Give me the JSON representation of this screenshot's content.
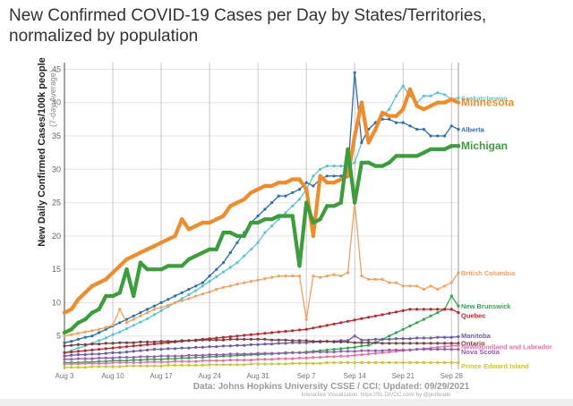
{
  "page_title_lines": [
    "New Confirmed COVID-19 Cases per Day by States/Territories,",
    "normalized by population"
  ],
  "chart_data": {
    "type": "line",
    "title": "New Confirmed COVID-19 Cases per Day by States/Territories, normalized by population",
    "ylabel": "New Daily Confirmed Cases/100k people",
    "ylabel_sub": "(7-day Average)",
    "xlabel": "",
    "ylim": [
      0,
      46
    ],
    "yticks": [
      5,
      10,
      15,
      20,
      25,
      30,
      35,
      40,
      45
    ],
    "x_dates": [
      "Aug 3",
      "Aug 4",
      "Aug 5",
      "Aug 6",
      "Aug 7",
      "Aug 8",
      "Aug 9",
      "Aug 10",
      "Aug 11",
      "Aug 12",
      "Aug 13",
      "Aug 14",
      "Aug 15",
      "Aug 16",
      "Aug 17",
      "Aug 18",
      "Aug 19",
      "Aug 20",
      "Aug 21",
      "Aug 22",
      "Aug 23",
      "Aug 24",
      "Aug 25",
      "Aug 26",
      "Aug 27",
      "Aug 28",
      "Aug 29",
      "Aug 30",
      "Aug 31",
      "Sep 1",
      "Sep 2",
      "Sep 3",
      "Sep 4",
      "Sep 5",
      "Sep 6",
      "Sep 7",
      "Sep 8",
      "Sep 9",
      "Sep 10",
      "Sep 11",
      "Sep 12",
      "Sep 13",
      "Sep 14",
      "Sep 15",
      "Sep 16",
      "Sep 17",
      "Sep 18",
      "Sep 19",
      "Sep 20",
      "Sep 21",
      "Sep 22",
      "Sep 23",
      "Sep 24",
      "Sep 25",
      "Sep 26",
      "Sep 27",
      "Sep 28",
      "Sep 29"
    ],
    "x_tick_labels": [
      "Aug 3",
      "Aug 10",
      "Aug 17",
      "Aug 24",
      "Aug 31",
      "Sep 7",
      "Sep 14",
      "Sep 21",
      "Sep 28"
    ],
    "grid": true,
    "legend_placement": "right end labels",
    "series": [
      {
        "name": "Saskatchewan",
        "color": "#5bc3d6",
        "width": 1.3,
        "dash": "",
        "values": [
          2.5,
          2.8,
          3.2,
          3.5,
          3.9,
          4.3,
          4.7,
          5.2,
          5.6,
          6.1,
          6.6,
          7.1,
          7.6,
          8.2,
          8.8,
          9.4,
          10.0,
          10.6,
          11.2,
          11.8,
          12.5,
          13.2,
          13.9,
          14.6,
          15.3,
          16.0,
          17.0,
          18.0,
          19.0,
          20.5,
          21.5,
          22.5,
          23.5,
          24.5,
          25.5,
          27.0,
          29.0,
          30.0,
          30.5,
          30.5,
          30.5,
          30.5,
          31.0,
          34.0,
          36.0,
          37.0,
          38.0,
          39.0,
          41.0,
          42.5,
          41.0,
          40.0,
          41.0,
          41.0,
          41.5,
          41.2,
          40.5,
          40.7
        ]
      },
      {
        "name": "Minnesota",
        "color": "#f28c28",
        "width": 4.2,
        "dash": "",
        "values": [
          8.5,
          9.0,
          10.5,
          11.5,
          12.5,
          13.0,
          13.5,
          14.5,
          15.5,
          16.5,
          17.0,
          17.5,
          18.0,
          18.5,
          19.0,
          19.5,
          20.0,
          22.5,
          21.0,
          21.5,
          22.0,
          22.0,
          22.5,
          23.0,
          24.5,
          25.0,
          25.5,
          26.5,
          27.0,
          27.5,
          27.5,
          28.0,
          28.0,
          28.5,
          28.5,
          27.0,
          20.0,
          29.0,
          28.0,
          28.0,
          28.5,
          29.0,
          35.0,
          40.0,
          34.0,
          36.0,
          38.5,
          38.0,
          38.0,
          39.0,
          42.0,
          39.5,
          39.0,
          39.5,
          40.0,
          40.0,
          40.5,
          40.0
        ]
      },
      {
        "name": "Alberta",
        "color": "#2c6fb0",
        "width": 1.3,
        "dash": "",
        "values": [
          4.0,
          4.2,
          4.5,
          4.8,
          5.0,
          5.5,
          6.0,
          6.5,
          7.0,
          7.5,
          8.0,
          8.5,
          9.0,
          9.5,
          10.0,
          10.5,
          11.0,
          11.5,
          12.0,
          12.5,
          13.0,
          14.0,
          15.0,
          16.0,
          17.5,
          19.0,
          20.5,
          22.0,
          23.0,
          24.0,
          25.0,
          26.0,
          26.0,
          26.5,
          27.0,
          28.0,
          27.5,
          28.5,
          29.0,
          29.0,
          29.0,
          29.5,
          44.5,
          34.0,
          36.0,
          37.0,
          37.5,
          37.5,
          37.0,
          37.0,
          36.5,
          36.0,
          36.0,
          35.0,
          35.0,
          35.0,
          36.5,
          36.0
        ]
      },
      {
        "name": "Michigan",
        "color": "#3a9e3a",
        "width": 4.2,
        "dash": "",
        "values": [
          5.5,
          6.0,
          7.0,
          7.5,
          8.5,
          9.0,
          11.0,
          11.0,
          11.5,
          15.0,
          11.0,
          16.0,
          15.0,
          15.0,
          15.0,
          15.5,
          15.5,
          15.5,
          16.5,
          17.0,
          17.5,
          18.0,
          18.0,
          20.5,
          20.5,
          20.0,
          20.0,
          22.0,
          22.0,
          22.5,
          22.5,
          23.0,
          23.0,
          23.0,
          15.5,
          25.0,
          22.0,
          22.5,
          24.5,
          24.5,
          25.0,
          33.0,
          25.0,
          31.0,
          31.0,
          30.5,
          30.5,
          31.0,
          32.0,
          32.0,
          32.0,
          32.0,
          32.5,
          33.0,
          33.0,
          33.0,
          33.5,
          33.5
        ]
      },
      {
        "name": "British Columbia",
        "color": "#f5a15c",
        "width": 1.3,
        "dash": "",
        "values": [
          5.0,
          5.2,
          5.4,
          5.6,
          5.8,
          6.0,
          6.3,
          6.6,
          9.0,
          7.0,
          7.5,
          8.0,
          8.5,
          9.0,
          9.3,
          9.6,
          10.0,
          10.3,
          10.6,
          11.0,
          11.3,
          11.6,
          12.0,
          12.3,
          12.5,
          12.8,
          13.0,
          13.2,
          13.4,
          13.6,
          13.8,
          14.0,
          14.0,
          14.0,
          14.0,
          7.5,
          14.0,
          13.8,
          14.0,
          14.2,
          14.0,
          14.5,
          25.0,
          14.0,
          13.5,
          13.5,
          13.5,
          13.0,
          13.0,
          12.5,
          12.5,
          12.5,
          12.0,
          12.5,
          12.0,
          12.5,
          13.0,
          14.5
        ]
      },
      {
        "name": "New Brunswick",
        "color": "#2fa84f",
        "width": 1.3,
        "dash": "",
        "values": [
          1.0,
          1.0,
          1.0,
          1.1,
          1.1,
          1.2,
          1.2,
          1.3,
          1.3,
          1.3,
          1.4,
          1.4,
          1.5,
          1.5,
          1.5,
          1.6,
          1.6,
          1.7,
          1.7,
          1.8,
          1.8,
          1.9,
          1.9,
          2.0,
          2.0,
          2.1,
          2.1,
          2.2,
          2.2,
          2.3,
          2.3,
          2.4,
          2.4,
          2.5,
          2.5,
          2.6,
          2.7,
          2.8,
          2.9,
          3.0,
          3.1,
          3.2,
          3.3,
          3.5,
          3.6,
          4.0,
          4.5,
          5.0,
          5.5,
          6.0,
          6.5,
          7.0,
          7.5,
          8.0,
          8.5,
          9.0,
          11.0,
          9.5
        ]
      },
      {
        "name": "Quebec",
        "color": "#c0262d",
        "width": 1.3,
        "dash": "",
        "values": [
          2.5,
          2.6,
          2.7,
          2.8,
          2.9,
          3.0,
          3.1,
          3.2,
          3.3,
          3.4,
          3.5,
          3.6,
          3.7,
          3.8,
          3.9,
          4.0,
          4.1,
          4.2,
          4.3,
          4.4,
          4.5,
          4.6,
          4.7,
          4.8,
          4.9,
          5.0,
          5.1,
          5.2,
          5.3,
          5.4,
          5.5,
          5.6,
          5.7,
          5.8,
          5.9,
          6.0,
          6.2,
          6.4,
          6.6,
          6.8,
          7.0,
          7.2,
          7.4,
          7.6,
          7.8,
          8.0,
          8.2,
          8.4,
          8.6,
          8.8,
          9.0,
          9.0,
          9.0,
          9.0,
          9.0,
          9.0,
          9.0,
          8.5
        ]
      },
      {
        "name": "Manitoba",
        "color": "#6b5ba8",
        "width": 1.3,
        "dash": "",
        "values": [
          2.0,
          2.1,
          2.2,
          2.2,
          2.3,
          2.3,
          2.4,
          2.5,
          2.5,
          2.6,
          2.7,
          2.8,
          2.9,
          3.0,
          3.0,
          3.1,
          3.1,
          3.2,
          3.2,
          3.3,
          3.3,
          3.4,
          3.4,
          3.5,
          3.5,
          3.6,
          3.6,
          3.7,
          3.7,
          3.8,
          3.8,
          3.9,
          3.9,
          4.0,
          4.0,
          4.0,
          4.1,
          4.1,
          4.2,
          4.2,
          4.3,
          4.3,
          5.0,
          4.4,
          4.4,
          4.5,
          4.5,
          4.5,
          4.6,
          4.6,
          4.6,
          4.7,
          4.7,
          4.7,
          4.8,
          4.8,
          4.8,
          4.9
        ]
      },
      {
        "name": "Ontario",
        "color": "#7a3f3f",
        "width": 1.3,
        "dash": "",
        "values": [
          3.5,
          3.6,
          3.7,
          3.7,
          3.8,
          3.8,
          3.9,
          3.9,
          4.0,
          4.0,
          4.0,
          4.1,
          4.1,
          4.1,
          4.2,
          4.2,
          4.2,
          4.3,
          4.3,
          4.3,
          4.4,
          4.4,
          4.4,
          4.4,
          4.5,
          4.5,
          4.5,
          4.5,
          4.5,
          4.5,
          4.4,
          4.4,
          4.4,
          4.3,
          4.3,
          4.3,
          4.2,
          4.2,
          4.2,
          4.1,
          4.1,
          4.1,
          4.0,
          4.0,
          4.0,
          4.0,
          3.9,
          3.9,
          3.9,
          3.9,
          3.9,
          3.9,
          3.9,
          3.9,
          3.9,
          3.9,
          3.9,
          3.9
        ]
      },
      {
        "name": "Newfoundland and Labrador",
        "color": "#e86fa8",
        "width": 1.3,
        "dash": "",
        "values": [
          0.8,
          0.8,
          0.8,
          0.9,
          0.9,
          0.9,
          0.9,
          1.0,
          1.0,
          1.0,
          1.0,
          1.0,
          1.1,
          1.1,
          1.1,
          1.1,
          1.2,
          1.2,
          1.2,
          1.2,
          1.3,
          1.3,
          1.3,
          1.3,
          1.4,
          1.4,
          1.4,
          1.4,
          1.5,
          1.5,
          1.5,
          1.6,
          1.6,
          1.6,
          1.7,
          1.7,
          1.8,
          1.8,
          1.9,
          1.9,
          2.0,
          2.0,
          2.1,
          2.2,
          2.3,
          2.4,
          2.5,
          2.6,
          2.7,
          2.8,
          2.9,
          3.0,
          3.1,
          3.2,
          3.3,
          3.4,
          3.5,
          3.6
        ]
      },
      {
        "name": "Nova Scotia",
        "color": "#9b59b6",
        "width": 1.3,
        "dash": "",
        "values": [
          1.5,
          1.5,
          1.6,
          1.6,
          1.6,
          1.7,
          1.7,
          1.7,
          1.8,
          1.8,
          1.8,
          1.9,
          1.9,
          1.9,
          2.0,
          2.0,
          2.0,
          2.0,
          2.1,
          2.1,
          2.1,
          2.2,
          2.2,
          2.2,
          2.3,
          2.3,
          2.3,
          2.3,
          2.4,
          2.4,
          2.4,
          2.4,
          2.5,
          2.5,
          2.5,
          2.5,
          2.6,
          2.6,
          2.6,
          2.6,
          2.7,
          2.7,
          2.7,
          2.8,
          2.8,
          2.8,
          2.8,
          2.9,
          2.9,
          2.9,
          2.9,
          3.0,
          3.0,
          3.0,
          3.0,
          3.0,
          3.0,
          3.0
        ]
      },
      {
        "name": "Prince Edward Island",
        "color": "#c9c92a",
        "width": 1.3,
        "dash": "",
        "values": [
          0.3,
          0.3,
          0.3,
          0.3,
          0.4,
          0.4,
          0.4,
          0.4,
          0.4,
          0.5,
          0.5,
          0.5,
          0.5,
          0.5,
          0.5,
          0.6,
          0.6,
          0.6,
          0.6,
          0.6,
          0.6,
          0.7,
          0.7,
          0.7,
          0.7,
          0.7,
          0.7,
          0.8,
          0.8,
          0.8,
          0.8,
          0.8,
          0.8,
          0.9,
          0.9,
          0.9,
          0.9,
          0.9,
          1.0,
          1.0,
          1.0,
          1.0,
          1.0,
          1.0,
          1.0,
          1.0,
          1.0,
          1.0,
          1.0,
          1.0,
          1.0,
          1.0,
          1.0,
          1.0,
          1.0,
          1.0,
          1.0,
          1.0
        ]
      }
    ],
    "label_colors": {
      "Saskatchewan": "#5bc3d6",
      "Minnesota": "#f28c28",
      "Alberta": "#2c6fb0",
      "Michigan": "#3a9e3a",
      "British Columbia": "#f5a15c",
      "New Brunswick": "#2fa84f",
      "Quebec": "#c0262d",
      "Manitoba": "#6b5ba8",
      "Ontario": "#7a3f3f",
      "Newfoundland and Labrador": "#e86fa8",
      "Nova Scotia": "#9b59b6",
      "Prince Edward Island": "#c9c92a"
    },
    "annotations": {
      "source": "Data: Johns Hopkins University CSSE / CCI; Updated: 09/29/2021",
      "credit": "Interactive Visualization: https://91-DIVOC.com/ by @profwade"
    }
  }
}
